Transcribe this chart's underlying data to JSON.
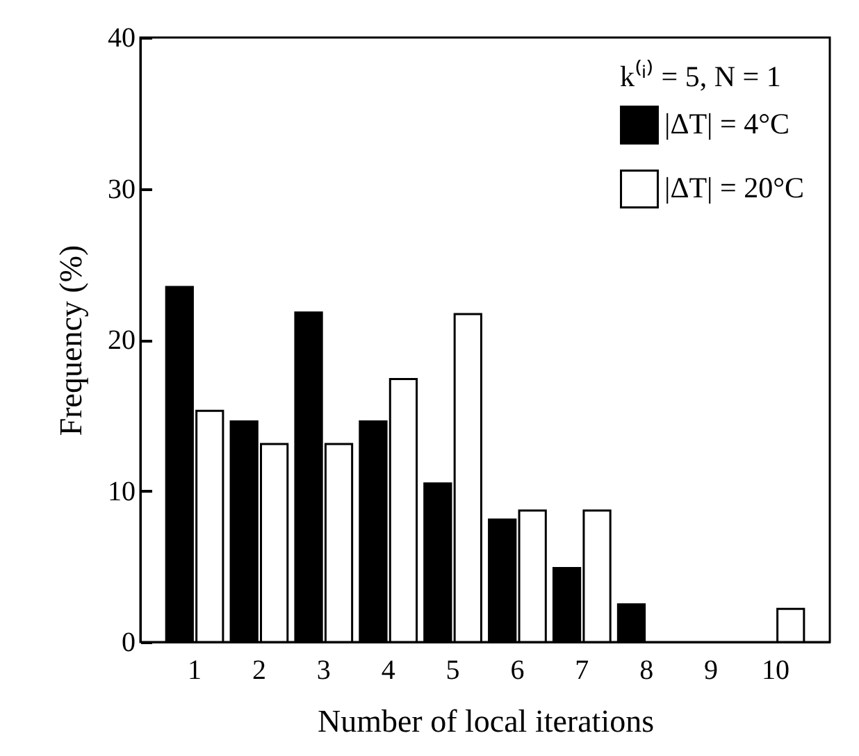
{
  "chart_data": {
    "type": "bar",
    "xlabel": "Number of local iterations",
    "ylabel": "Frequency (%)",
    "legend_title": "k⁽ⁱ⁾ = 5,  N = 1",
    "categories": [
      "1",
      "2",
      "3",
      "4",
      "5",
      "6",
      "7",
      "8",
      "9",
      "10"
    ],
    "series": [
      {
        "name": "|ΔT| = 4°C",
        "color": "#000000",
        "values": [
          23.5,
          14.6,
          21.8,
          14.6,
          10.5,
          8.1,
          4.9,
          2.5,
          0,
          0
        ]
      },
      {
        "name": "|ΔT| = 20°C",
        "color": "#ffffff",
        "values": [
          15.3,
          13.1,
          13.1,
          17.4,
          21.7,
          8.7,
          8.7,
          0,
          0,
          2.2
        ]
      }
    ],
    "ylim": [
      0,
      40
    ],
    "yticks": [
      0,
      10,
      20,
      30,
      40
    ],
    "grid": false,
    "legend": "top right"
  }
}
